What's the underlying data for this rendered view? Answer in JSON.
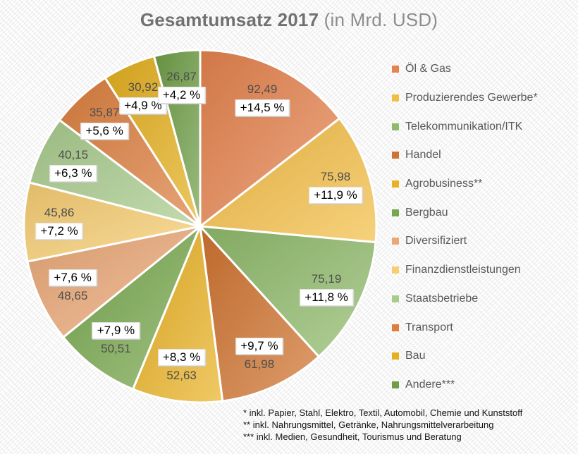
{
  "title": {
    "main": "Gesamtumsatz 2017",
    "suffix": " (in Mrd. USD)"
  },
  "chart_data": {
    "type": "pie",
    "title": "Gesamtumsatz 2017 (in Mrd. USD)",
    "unit": "Mrd. USD",
    "start_angle_deg": 0,
    "direction": "clockwise",
    "legend_position": "right",
    "categories": [
      "Öl & Gas",
      "Produzierendes Gewerbe*",
      "Telekommunikation/ITK",
      "Handel",
      "Agrobusiness**",
      "Bergbau",
      "Diversifiziert",
      "Finanzdienstleistungen",
      "Staatsbetriebe",
      "Transport",
      "Bau",
      "Andere***"
    ],
    "values": [
      92.49,
      75.98,
      75.19,
      61.98,
      52.63,
      50.51,
      48.65,
      45.86,
      40.15,
      35.87,
      30.92,
      26.87
    ],
    "value_labels": [
      "92,49",
      "75,98",
      "75,19",
      "61,98",
      "52,63",
      "50,51",
      "48,65",
      "45,86",
      "40,15",
      "35,87",
      "30,92",
      "26,87"
    ],
    "share_labels": [
      "+14,5 %",
      "+11,9 %",
      "+11,8 %",
      "+9,7 %",
      "+8,3 %",
      "+7,9 %",
      "+7,6 %",
      "+7,2 %",
      "+6,3 %",
      "+5,6 %",
      "+4,9 %",
      "+4,2 %"
    ],
    "colors": [
      "#E6834E",
      "#F4BD45",
      "#8FBA6B",
      "#D0732F",
      "#E9B224",
      "#78A84E",
      "#EBA877",
      "#F7CE72",
      "#A9CB8D",
      "#DD7F3F",
      "#E5B01E",
      "#6F9E47"
    ],
    "slice_border_color": "#ffffff"
  },
  "footnotes": [
    "* inkl. Papier, Stahl, Elektro, Textil, Automobil, Chemie und Kunststoff",
    "** inkl. Nahrungsmittel, Getränke, Nahrungsmittelverarbeitung",
    "*** inkl. Medien, Gesundheit, Tourismus und Beratung"
  ]
}
